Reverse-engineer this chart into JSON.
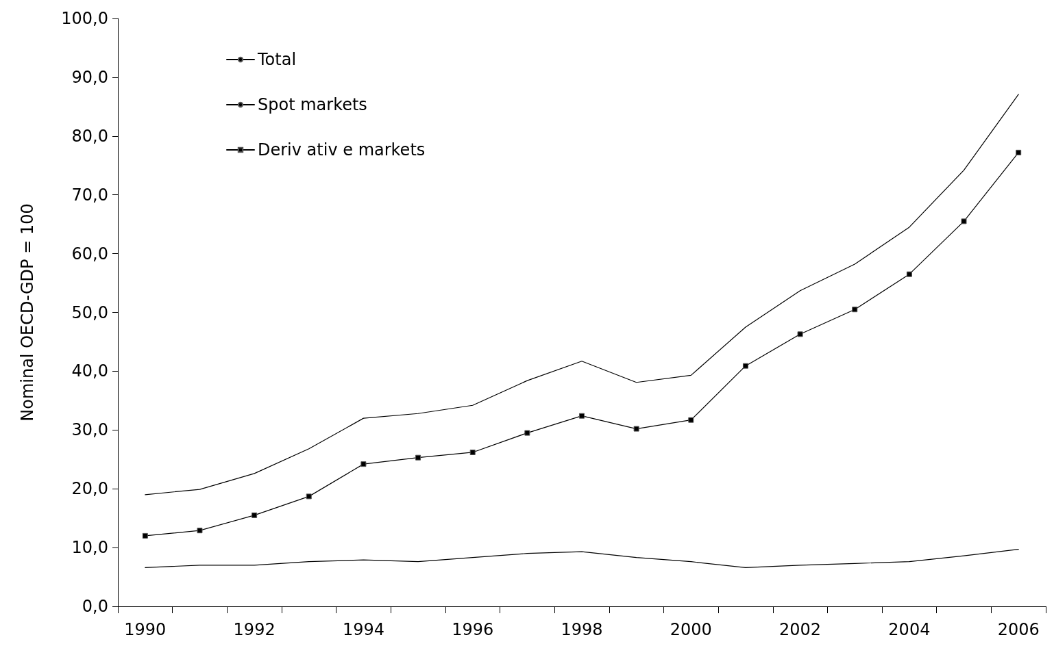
{
  "chart_data": {
    "type": "line",
    "ylabel": "Nominal OECD-GDP = 100",
    "categories": [
      "1990",
      null,
      "1992",
      null,
      "1994",
      null,
      "1996",
      null,
      "1998",
      null,
      "2000",
      null,
      "2002",
      null,
      "2004",
      null,
      "2006"
    ],
    "series": [
      {
        "name": "Total",
        "color": "#000000",
        "marker": "none",
        "values": [
          19.0,
          19.9,
          22.6,
          26.8,
          32.0,
          32.8,
          34.2,
          38.4,
          41.7,
          38.1,
          39.3,
          47.5,
          53.7,
          58.2,
          64.5,
          74.2,
          87.1
        ]
      },
      {
        "name": "Spot markets",
        "color": "#000000",
        "marker": "none",
        "values": [
          6.6,
          7.0,
          7.0,
          7.6,
          7.9,
          7.6,
          8.3,
          9.0,
          9.3,
          8.3,
          7.6,
          6.6,
          7.0,
          7.3,
          7.6,
          8.6,
          9.7
        ]
      },
      {
        "name": "Deriv ativ e markets",
        "color": "#000000",
        "marker": "square",
        "values": [
          12.0,
          12.9,
          15.5,
          18.7,
          24.2,
          25.3,
          26.2,
          29.5,
          32.4,
          30.2,
          31.7,
          40.9,
          46.3,
          50.5,
          56.5,
          65.5,
          77.2
        ]
      }
    ],
    "ylim": [
      0,
      100
    ],
    "yticks": [
      {
        "value": 0,
        "label": "0,0"
      },
      {
        "value": 10,
        "label": "10,0"
      },
      {
        "value": 20,
        "label": "20,0"
      },
      {
        "value": 30,
        "label": "30,0"
      },
      {
        "value": 40,
        "label": "40,0"
      },
      {
        "value": 50,
        "label": "50,0"
      },
      {
        "value": 60,
        "label": "60,0"
      },
      {
        "value": 70,
        "label": "70,0"
      },
      {
        "value": 80,
        "label": "80,0"
      },
      {
        "value": 90,
        "label": "90,0"
      },
      {
        "value": 100,
        "label": "100,0"
      }
    ],
    "grid": false,
    "legend": "top left",
    "line_style": "solid"
  }
}
